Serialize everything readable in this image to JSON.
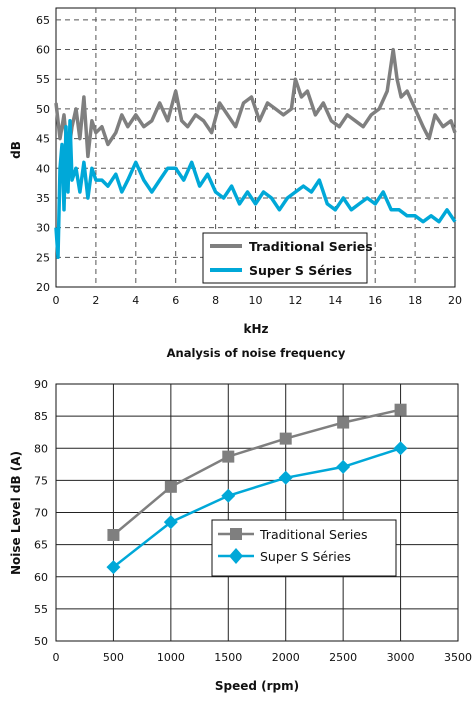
{
  "charts_meta": {
    "caption": "Analysis of noise frequency"
  },
  "colors": {
    "traditional": "#7f7f7f",
    "super": "#00a8d8",
    "grid": "#555555"
  },
  "chart_data": [
    {
      "type": "line",
      "xlabel": "kHz",
      "ylabel": "dB",
      "caption": "Analysis of noise frequency",
      "xlim": [
        0,
        20
      ],
      "ylim": [
        20,
        67
      ],
      "xticks": [
        0,
        2,
        4,
        6,
        8,
        10,
        12,
        14,
        16,
        18,
        20
      ],
      "yticks": [
        20,
        25,
        30,
        35,
        40,
        45,
        50,
        55,
        60,
        65
      ],
      "grid": true,
      "legend_position": "bottom-right",
      "series": [
        {
          "name": "Traditional Series",
          "x": [
            0,
            0.2,
            0.4,
            0.6,
            0.8,
            1,
            1.2,
            1.4,
            1.6,
            1.8,
            2,
            2.3,
            2.6,
            3,
            3.3,
            3.6,
            4,
            4.4,
            4.8,
            5.2,
            5.6,
            6,
            6.3,
            6.6,
            7,
            7.4,
            7.8,
            8.2,
            8.6,
            9,
            9.4,
            9.8,
            10.2,
            10.6,
            11,
            11.4,
            11.8,
            12,
            12.3,
            12.6,
            13,
            13.4,
            13.8,
            14.2,
            14.6,
            15,
            15.4,
            15.8,
            16.2,
            16.6,
            16.9,
            17.1,
            17.3,
            17.6,
            18,
            18.4,
            18.7,
            19,
            19.4,
            19.8,
            20
          ],
          "values": [
            51,
            45,
            49,
            42,
            47,
            50,
            45,
            52,
            42,
            48,
            46,
            47,
            44,
            46,
            49,
            47,
            49,
            47,
            48,
            51,
            48,
            53,
            48,
            47,
            49,
            48,
            46,
            51,
            49,
            47,
            51,
            52,
            48,
            51,
            50,
            49,
            50,
            55,
            52,
            53,
            49,
            51,
            48,
            47,
            49,
            48,
            47,
            49,
            50,
            53,
            60,
            55,
            52,
            53,
            50,
            47,
            45,
            49,
            47,
            48,
            46
          ]
        },
        {
          "name": "Super S Séries",
          "x": [
            0,
            0.1,
            0.2,
            0.3,
            0.4,
            0.5,
            0.6,
            0.7,
            0.8,
            1,
            1.2,
            1.4,
            1.6,
            1.8,
            2,
            2.3,
            2.6,
            3,
            3.3,
            3.6,
            4,
            4.4,
            4.8,
            5.2,
            5.6,
            6,
            6.4,
            6.8,
            7.2,
            7.6,
            8,
            8.4,
            8.8,
            9.2,
            9.6,
            10,
            10.4,
            10.8,
            11.2,
            11.6,
            12,
            12.4,
            12.8,
            13.2,
            13.6,
            14,
            14.4,
            14.8,
            15.2,
            15.6,
            16,
            16.4,
            16.8,
            17.2,
            17.6,
            18,
            18.4,
            18.8,
            19.2,
            19.6,
            20
          ],
          "values": [
            30,
            25,
            40,
            44,
            33,
            47,
            36,
            48,
            38,
            40,
            36,
            41,
            35,
            40,
            38,
            38,
            37,
            39,
            36,
            38,
            41,
            38,
            36,
            38,
            40,
            40,
            38,
            41,
            37,
            39,
            36,
            35,
            37,
            34,
            36,
            34,
            36,
            35,
            33,
            35,
            36,
            37,
            36,
            38,
            34,
            33,
            35,
            33,
            34,
            35,
            34,
            36,
            33,
            33,
            32,
            32,
            31,
            32,
            31,
            33,
            31
          ]
        }
      ]
    },
    {
      "type": "line",
      "xlabel": "Speed (rpm)",
      "ylabel": "Noise Level dB (A)",
      "xlim": [
        0,
        3500
      ],
      "ylim": [
        50,
        90
      ],
      "xticks": [
        0,
        500,
        1000,
        1500,
        2000,
        2500,
        3000,
        3500
      ],
      "yticks": [
        50,
        55,
        60,
        65,
        70,
        75,
        80,
        85,
        90
      ],
      "grid": true,
      "legend_position": "bottom-right",
      "x": [
        500,
        1000,
        1500,
        2000,
        2500,
        3000
      ],
      "series": [
        {
          "name": "Traditional Series",
          "marker": "square",
          "values": [
            66.5,
            74,
            78.7,
            81.5,
            84,
            86
          ]
        },
        {
          "name": "Super S Séries",
          "marker": "diamond",
          "values": [
            61.5,
            68.5,
            72.6,
            75.4,
            77.1,
            80
          ]
        }
      ]
    }
  ]
}
